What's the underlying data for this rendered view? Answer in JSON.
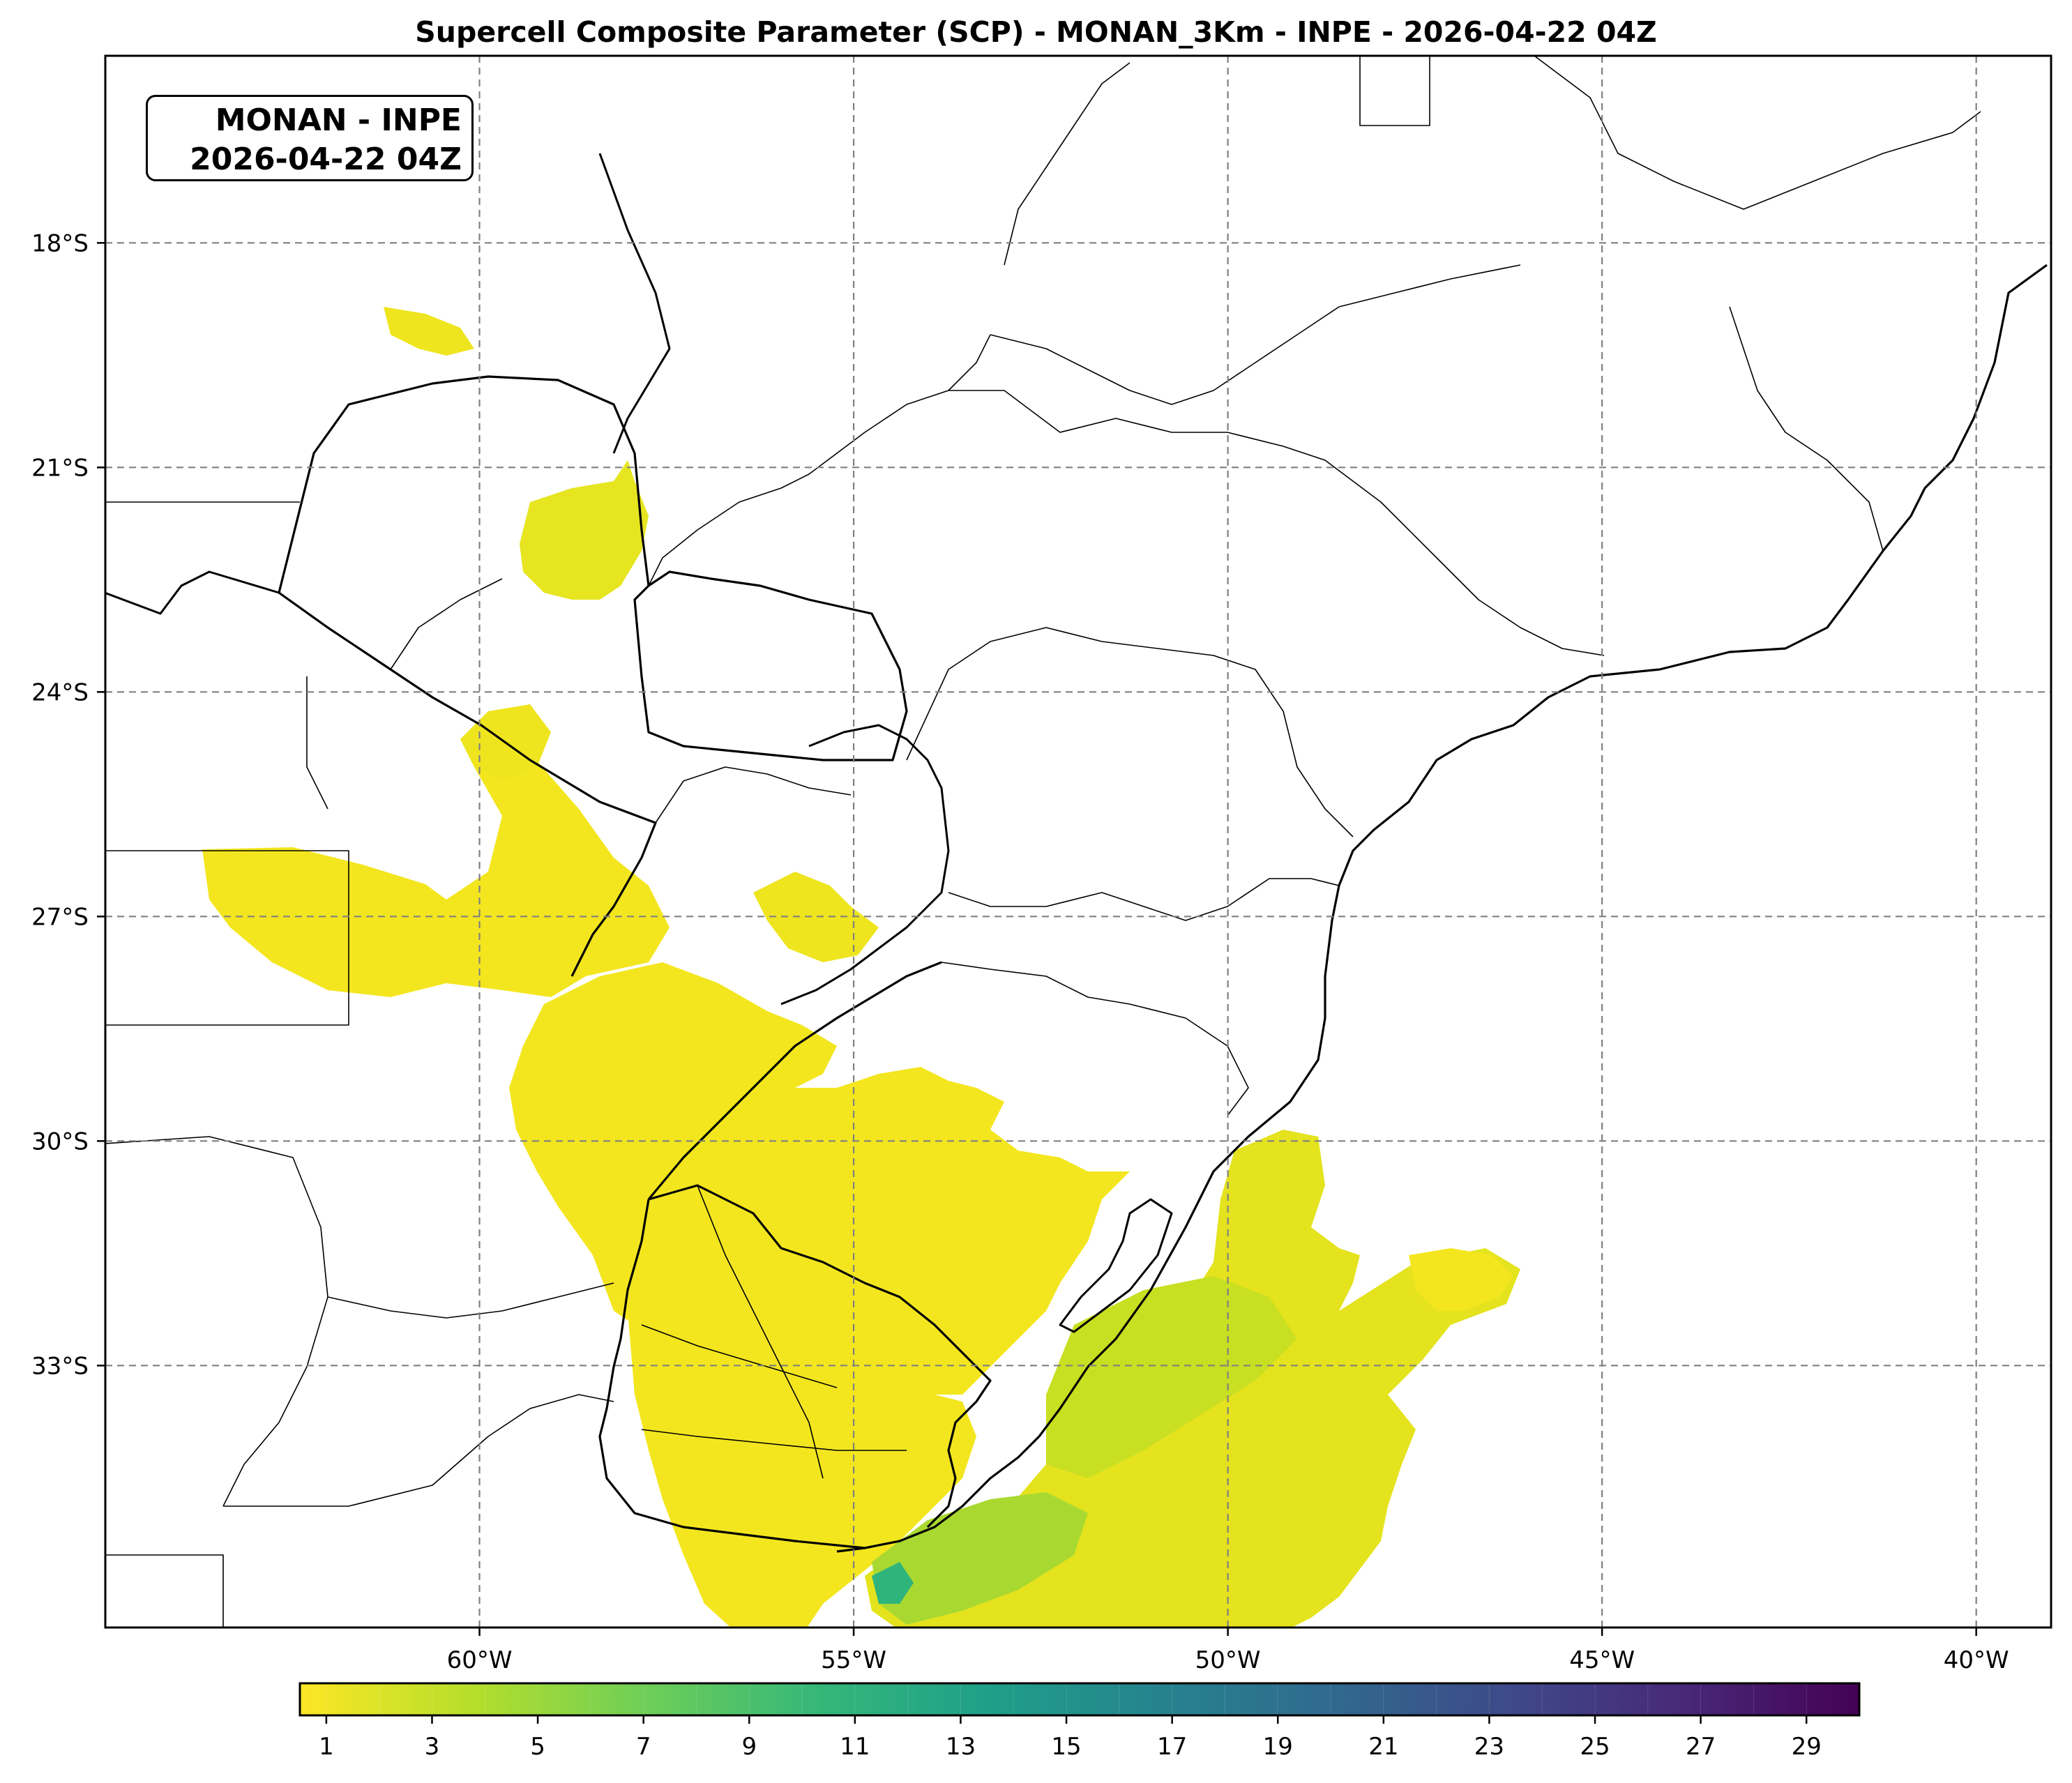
{
  "title": "Supercell Composite Parameter (SCP) - MONAN_3Km - INPE - 2026-04-22 04Z",
  "stamp": {
    "line1": "MONAN - INPE",
    "line2": "2026-04-22 04Z"
  },
  "map": {
    "projection": "PlateCarree",
    "lon_range": [
      -65,
      -39
    ],
    "lat_range": [
      -36.5,
      -15.5
    ],
    "gridlines": "dashed gray",
    "lon_ticks": [
      {
        "value": -60,
        "label": "60°W"
      },
      {
        "value": -55,
        "label": "55°W"
      },
      {
        "value": -50,
        "label": "50°W"
      },
      {
        "value": -45,
        "label": "45°W"
      },
      {
        "value": -40,
        "label": "40°W"
      }
    ],
    "lat_ticks": [
      {
        "value": -18,
        "label": "18°S"
      },
      {
        "value": -21,
        "label": "21°S"
      },
      {
        "value": -24,
        "label": "24°S"
      },
      {
        "value": -27,
        "label": "27°S"
      },
      {
        "value": -30,
        "label": "30°S"
      },
      {
        "value": -33,
        "label": "33°S"
      }
    ]
  },
  "colorbar": {
    "colormap": "viridis_r",
    "min": 0.5,
    "max": 30,
    "ticks": [
      "1",
      "3",
      "5",
      "7",
      "9",
      "11",
      "13",
      "15",
      "17",
      "19",
      "21",
      "23",
      "25",
      "27",
      "29"
    ],
    "colors": [
      "#fde725",
      "#b5de2b",
      "#6ece58",
      "#35b779",
      "#1f9e89",
      "#26828e",
      "#31688e",
      "#3e4989",
      "#482878",
      "#440154"
    ]
  },
  "colors": {
    "scp_low": "#f1e51d",
    "scp_mid": "#c8e020",
    "scp_high": "#2fb47c",
    "scp_peak": "#1f968b",
    "boundary": "#000000",
    "grid": "#808080"
  }
}
